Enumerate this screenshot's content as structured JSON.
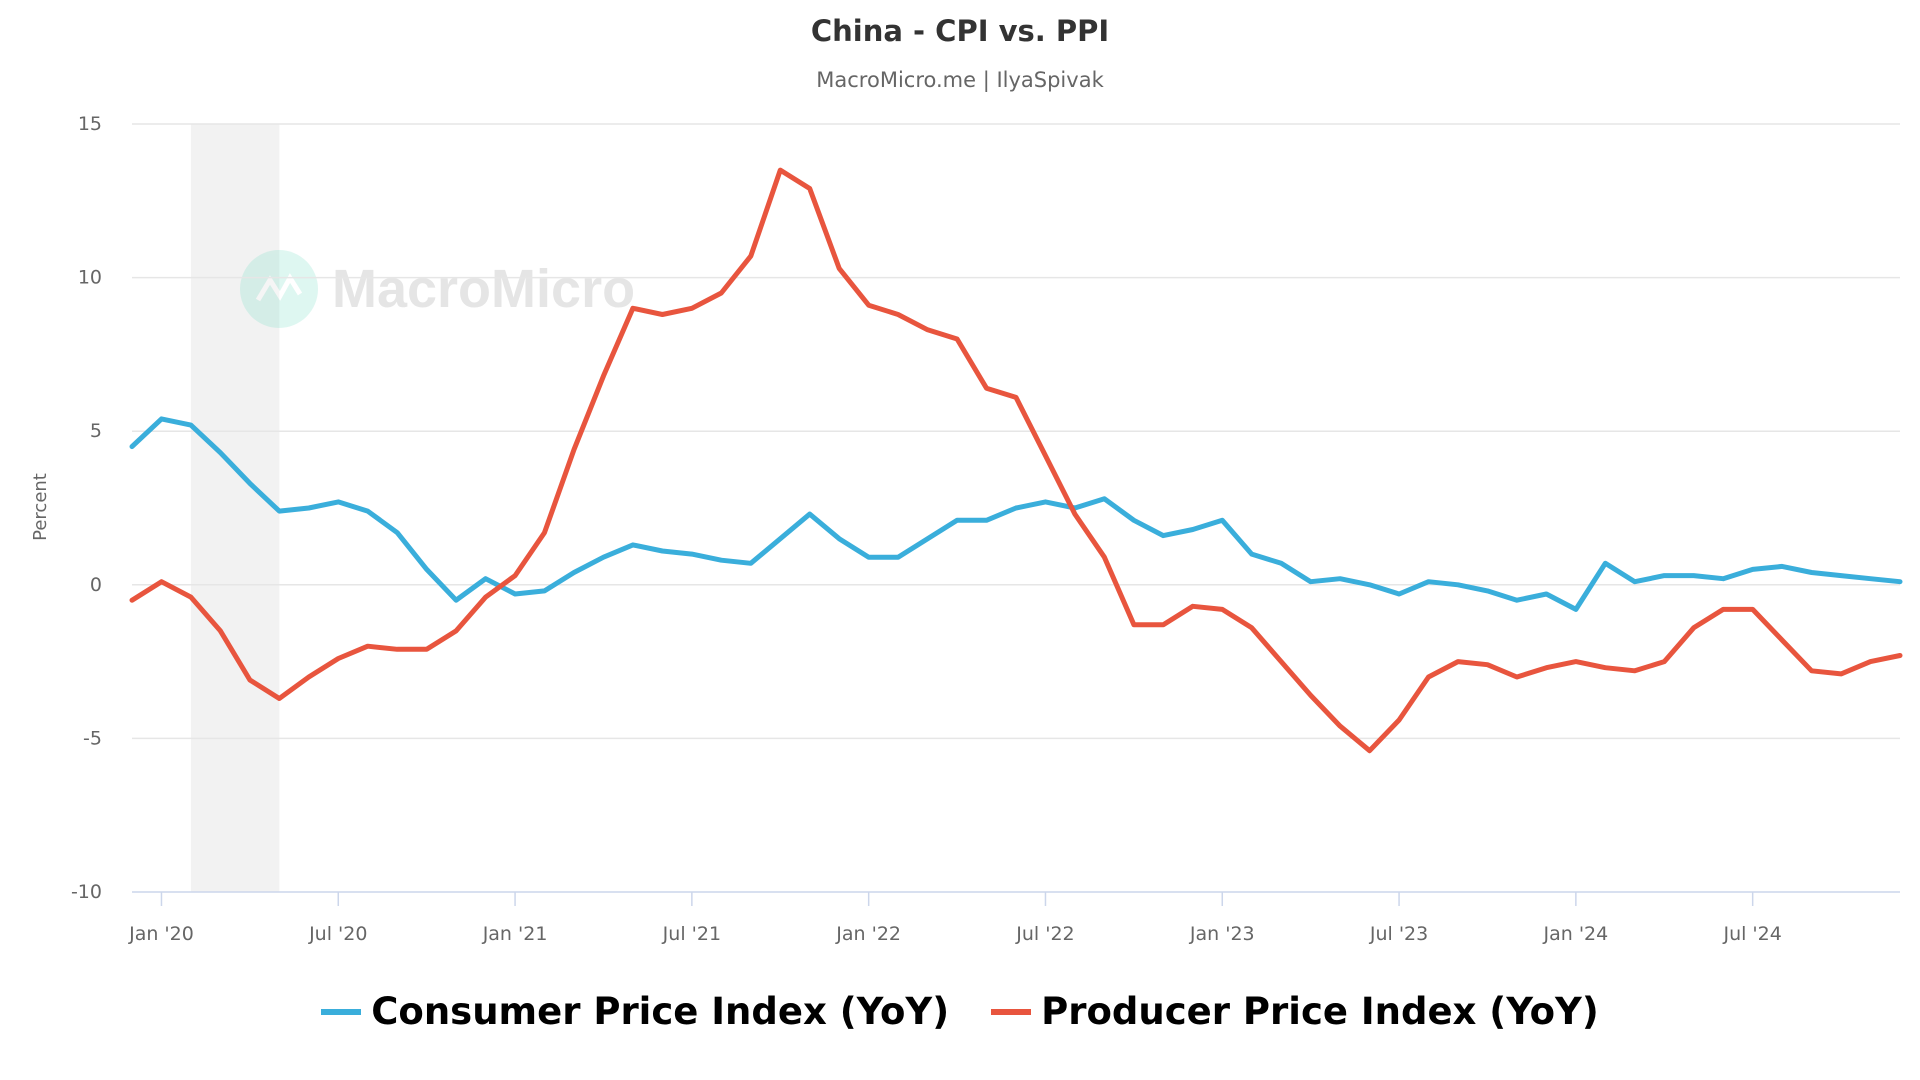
{
  "chart_data": {
    "type": "line",
    "title": "China - CPI vs. PPI",
    "subtitle": "MacroMicro.me | IlyaSpivak",
    "ylabel": "Percent",
    "xlabel": "",
    "ylim": [
      -10,
      15
    ],
    "yticks": [
      15,
      10,
      5,
      0,
      -5,
      -10
    ],
    "xrange": [
      "2019-12",
      "2024-12"
    ],
    "xticks": [
      {
        "date": "2020-01",
        "label": "Jan '20"
      },
      {
        "date": "2020-07",
        "label": "Jul '20"
      },
      {
        "date": "2021-01",
        "label": "Jan '21"
      },
      {
        "date": "2021-07",
        "label": "Jul '21"
      },
      {
        "date": "2022-01",
        "label": "Jan '22"
      },
      {
        "date": "2022-07",
        "label": "Jul '22"
      },
      {
        "date": "2023-01",
        "label": "Jan '23"
      },
      {
        "date": "2023-07",
        "label": "Jul '23"
      },
      {
        "date": "2024-01",
        "label": "Jan '24"
      },
      {
        "date": "2024-07",
        "label": "Jul '24"
      }
    ],
    "grid": true,
    "legend_position": "bottom",
    "shaded_period": {
      "start": "2020-02",
      "end": "2020-05",
      "color": "#f2f2f2"
    },
    "watermark": "MacroMicro",
    "x_start": "2019-12",
    "x_frequency": "monthly",
    "series": [
      {
        "name": "Consumer Price Index (YoY)",
        "color": "#3aaedb",
        "values": [
          4.5,
          5.4,
          5.2,
          4.3,
          3.3,
          2.4,
          2.5,
          2.7,
          2.4,
          1.7,
          0.5,
          -0.5,
          0.2,
          -0.3,
          -0.2,
          0.4,
          0.9,
          1.3,
          1.1,
          1.0,
          0.8,
          0.7,
          1.5,
          2.3,
          1.5,
          0.9,
          0.9,
          1.5,
          2.1,
          2.1,
          2.5,
          2.7,
          2.5,
          2.8,
          2.1,
          1.6,
          1.8,
          2.1,
          1.0,
          0.7,
          0.1,
          0.2,
          0.0,
          -0.3,
          0.1,
          0.0,
          -0.2,
          -0.5,
          -0.3,
          -0.8,
          0.7,
          0.1,
          0.3,
          0.3,
          0.2,
          0.5,
          0.6,
          0.4,
          0.3,
          0.2,
          0.1
        ]
      },
      {
        "name": "Producer Price Index (YoY)",
        "color": "#e8553e",
        "values": [
          -0.5,
          0.1,
          -0.4,
          -1.5,
          -3.1,
          -3.7,
          -3.0,
          -2.4,
          -2.0,
          -2.1,
          -2.1,
          -1.5,
          -0.4,
          0.3,
          1.7,
          4.4,
          6.8,
          9.0,
          8.8,
          9.0,
          9.5,
          10.7,
          13.5,
          12.9,
          10.3,
          9.1,
          8.8,
          8.3,
          8.0,
          6.4,
          6.1,
          4.2,
          2.3,
          0.9,
          -1.3,
          -1.3,
          -0.7,
          -0.8,
          -1.4,
          -2.5,
          -3.6,
          -4.6,
          -5.4,
          -4.4,
          -3.0,
          -2.5,
          -2.6,
          -3.0,
          -2.7,
          -2.5,
          -2.7,
          -2.8,
          -2.5,
          -1.4,
          -0.8,
          -0.8,
          -1.8,
          -2.8,
          -2.9,
          -2.5,
          -2.3
        ]
      }
    ]
  }
}
